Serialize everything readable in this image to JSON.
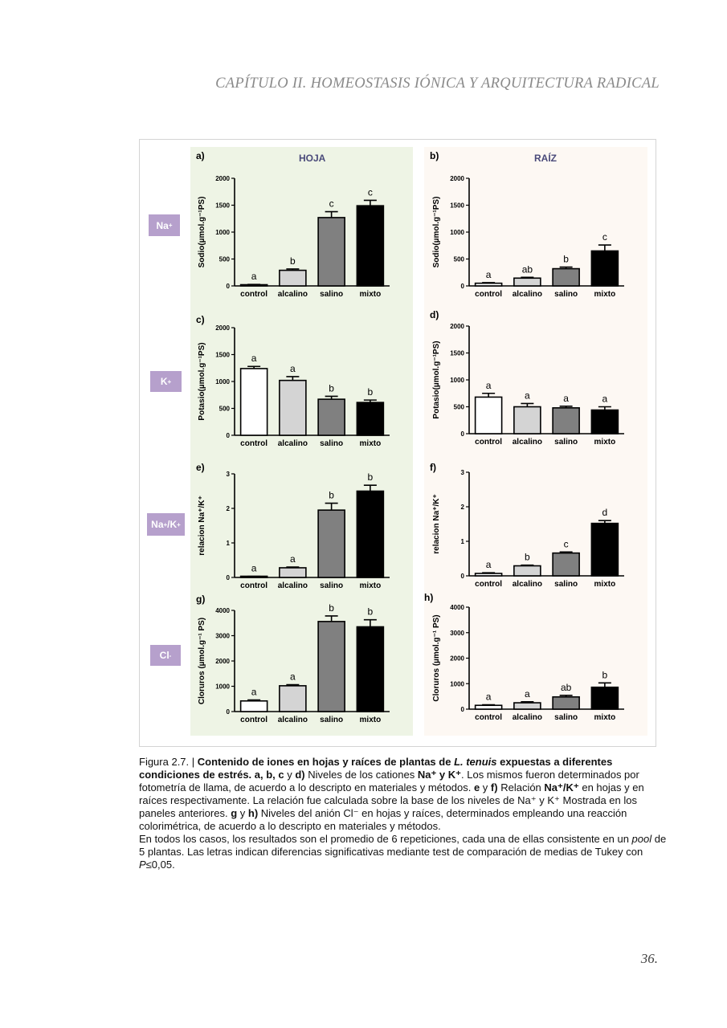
{
  "header": {
    "text": "CAPÍTULO II. HOMEOSTASIS IÓNICA Y ARQUITECTURA RADICAL"
  },
  "columns": {
    "hoja": "HOJA",
    "raiz": "RAÍZ"
  },
  "ions": [
    {
      "base": "Na",
      "sup": "+"
    },
    {
      "base": "K",
      "sup": "+"
    },
    {
      "base": "Na",
      "sup": "+",
      "base2": "/K",
      "sup2": "+"
    },
    {
      "base": "Cl",
      "sup": "-"
    }
  ],
  "chart_data": [
    {
      "type": "bar",
      "panel": "a)",
      "ylabel": "Sodio(µmol.g⁻¹PS)",
      "ylim": [
        0,
        2000
      ],
      "yticks": [
        0,
        500,
        1000,
        1500,
        2000
      ],
      "categories": [
        "control",
        "alcalino",
        "salino",
        "mixto"
      ],
      "values": [
        20,
        290,
        1270,
        1490
      ],
      "errors": [
        8,
        25,
        110,
        100
      ],
      "letters": [
        "a",
        "b",
        "c",
        "c"
      ]
    },
    {
      "type": "bar",
      "panel": "b)",
      "ylabel": "Sodio(µmol.g⁻¹PS)",
      "ylim": [
        0,
        2000
      ],
      "yticks": [
        0,
        500,
        1000,
        1500,
        2000
      ],
      "categories": [
        "control",
        "alcalino",
        "salino",
        "mixto"
      ],
      "values": [
        50,
        145,
        320,
        650
      ],
      "errors": [
        10,
        15,
        30,
        110
      ],
      "letters": [
        "a",
        "ab",
        "b",
        "c"
      ]
    },
    {
      "type": "bar",
      "panel": "c)",
      "ylabel": "Potasio(µmol.g⁻¹PS)",
      "ylim": [
        0,
        2000
      ],
      "yticks": [
        0,
        500,
        1000,
        1500,
        2000
      ],
      "categories": [
        "control",
        "alcalino",
        "salino",
        "mixto"
      ],
      "values": [
        1240,
        1020,
        670,
        610
      ],
      "errors": [
        40,
        70,
        55,
        45
      ],
      "letters": [
        "a",
        "a",
        "b",
        "b"
      ]
    },
    {
      "type": "bar",
      "panel": "d)",
      "ylabel": "Potasio(µmol.g⁻¹PS)",
      "ylim": [
        0,
        2000
      ],
      "yticks": [
        0,
        500,
        1000,
        1500,
        2000
      ],
      "categories": [
        "control",
        "alcalino",
        "salino",
        "mixto"
      ],
      "values": [
        680,
        500,
        480,
        440
      ],
      "errors": [
        70,
        60,
        30,
        60
      ],
      "letters": [
        "a",
        "a",
        "a",
        "a"
      ]
    },
    {
      "type": "bar",
      "panel": "e)",
      "ylabel": "relacion Na⁺/K⁺",
      "ylim": [
        0,
        3
      ],
      "yticks": [
        0,
        1,
        2,
        3
      ],
      "categories": [
        "control",
        "alcalino",
        "salino",
        "mixto"
      ],
      "values": [
        0.02,
        0.28,
        1.95,
        2.5
      ],
      "errors": [
        0.01,
        0.02,
        0.2,
        0.17
      ],
      "letters": [
        "a",
        "a",
        "b",
        "b"
      ]
    },
    {
      "type": "bar",
      "panel": "f)",
      "ylabel": "relacion Na⁺/K⁺",
      "ylim": [
        0,
        3
      ],
      "yticks": [
        0,
        1,
        2,
        3
      ],
      "categories": [
        "control",
        "alcalino",
        "salino",
        "mixto"
      ],
      "values": [
        0.07,
        0.29,
        0.66,
        1.52
      ],
      "errors": [
        0.02,
        0.02,
        0.03,
        0.08
      ],
      "letters": [
        "a",
        "b",
        "c",
        "d"
      ]
    },
    {
      "type": "bar",
      "panel": "g)",
      "ylabel": "Cloruros (µmol.g⁻¹ PS)",
      "ylim": [
        0,
        4000
      ],
      "yticks": [
        0,
        1000,
        2000,
        3000,
        4000
      ],
      "categories": [
        "control",
        "alcalino",
        "salino",
        "mixto"
      ],
      "values": [
        420,
        1020,
        3560,
        3350
      ],
      "errors": [
        40,
        40,
        220,
        280
      ],
      "letters": [
        "a",
        "a",
        "b",
        "b"
      ]
    },
    {
      "type": "bar",
      "panel": "h)",
      "ylabel": "Cloruros (µmol.g⁻¹ PS)",
      "ylim": [
        0,
        4000
      ],
      "yticks": [
        0,
        1000,
        2000,
        3000,
        4000
      ],
      "categories": [
        "control",
        "alcalino",
        "salino",
        "mixto"
      ],
      "values": [
        150,
        250,
        480,
        860
      ],
      "errors": [
        20,
        40,
        60,
        170
      ],
      "letters": [
        "a",
        "a",
        "ab",
        "b"
      ]
    }
  ],
  "bar_colors": [
    "#ffffff",
    "#d4d4d4",
    "#808080",
    "#000000"
  ],
  "colors": {
    "hoja_bg": "#eef4e5",
    "raiz_bg": "#fdf8f3",
    "ion_box": "#b6a0cc",
    "title": "#4a4a7a"
  },
  "caption": {
    "fig_label": "Figura 2.7. | ",
    "bold1": "Contenido de iones en hojas y raíces de plantas de ",
    "species": "L. tenuis",
    "bold2": " expuestas a diferentes condiciones de estrés. a, b, c ",
    "y1": "y ",
    "d1": "d)",
    "t1": " Niveles de los cationes ",
    "cations": "Na⁺ y K⁺",
    "t2": ". Los mismos fueron determinados por fotometría de llama, de acuerdo a lo descripto en materiales y métodos. ",
    "e1": "e",
    "y2": " y ",
    "f1": "f)",
    "t3": " Relación ",
    "ratio": "Na⁺/K⁺",
    "t4": " en hojas y en raíces respectivamente. La relación fue calculada sobre la base de los niveles de Na⁺ y K⁺ Mostrada en los paneles anteriores. ",
    "g1": "g",
    "y3": " y ",
    "h1": "h)",
    "t5": " Niveles del anión Cl⁻ en hojas y raíces, determinados empleando una reacción colorimétrica, de acuerdo a lo descripto en materiales y métodos.",
    "p2a": "En todos los casos, los resultados son el promedio de 6 repeticiones, cada una de ellas consistente en un ",
    "pool": "pool",
    "p2b": " de 5 plantas. Las letras indican diferencias significativas mediante test de comparación de medias de Tukey con ",
    "pvar": "P",
    "p2c": "≤0,05."
  },
  "page_number": "36."
}
